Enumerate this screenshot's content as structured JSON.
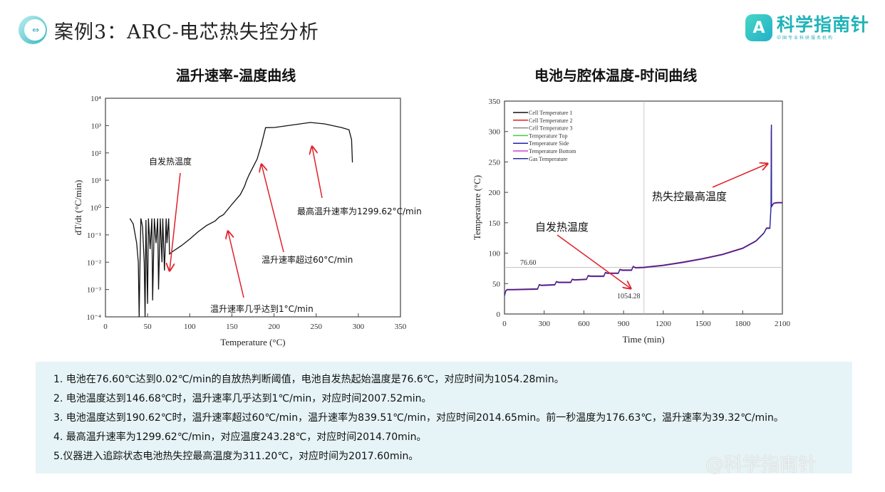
{
  "header": {
    "title": "案例3：ARC-电芯热失控分析",
    "logo_badge": "A",
    "logo_name": "科学指南针",
    "logo_sub": "中国专业科研服务机构"
  },
  "chart_data": [
    {
      "type": "line",
      "title": "温升速率-温度曲线",
      "xlabel": "Temperature (°C)",
      "ylabel": "dT/dt (°C/min)",
      "xlim": [
        0,
        350
      ],
      "ylim": [
        0.0001,
        10000
      ],
      "yscale": "log",
      "xticks": [
        "0",
        "50",
        "100",
        "150",
        "200",
        "250",
        "300",
        "350"
      ],
      "yticks": [
        "10⁻⁴",
        "10⁻³",
        "10⁻²",
        "10⁻¹",
        "10⁰",
        "10¹",
        "10²",
        "10³",
        "10⁴"
      ],
      "series": [
        {
          "name": "dT/dt",
          "color": "#111111",
          "x": [
            29,
            33,
            37,
            39,
            40,
            41,
            42,
            44,
            46,
            47,
            48,
            50,
            51,
            53,
            55,
            56,
            58,
            60,
            62,
            63,
            65,
            67,
            68,
            70,
            72,
            73,
            75,
            76,
            80,
            90,
            100,
            110,
            120,
            130,
            135,
            140,
            150,
            160,
            165,
            167,
            170,
            175,
            180,
            185,
            190,
            200,
            243,
            260,
            280,
            289,
            292,
            293
          ],
          "y": [
            0.4,
            0.25,
            0.05,
            0.01,
            0.0001,
            0.01,
            0.4,
            0.2,
            0.01,
            0.0001,
            0.35,
            0.0003,
            0.4,
            0.03,
            0.4,
            0.0004,
            0.4,
            0.05,
            0.4,
            0.001,
            0.4,
            0.01,
            0.4,
            0.005,
            0.4,
            0.05,
            0.4,
            0.02,
            0.025,
            0.04,
            0.07,
            0.13,
            0.22,
            0.32,
            0.45,
            0.55,
            1.3,
            3,
            6,
            9,
            15,
            30,
            60,
            200,
            840,
            850,
            1300,
            1150,
            850,
            700,
            300,
            45
          ]
        }
      ],
      "annotations": [
        {
          "text": "自发热温度"
        },
        {
          "text": "最高温升速率为1299.62°C/min"
        },
        {
          "text": "温升速率超过60°C/min"
        },
        {
          "text": "温升速率几乎达到1°C/min"
        }
      ]
    },
    {
      "type": "line",
      "title": "电池与腔体温度-时间曲线",
      "xlabel": "Time (min)",
      "ylabel": "Temperature (°C)",
      "xlim": [
        0,
        2100
      ],
      "ylim": [
        0,
        350
      ],
      "xticks": [
        "0",
        "300",
        "600",
        "900",
        "1200",
        "1500",
        "1800",
        "2100"
      ],
      "yticks": [
        "0",
        "50",
        "100",
        "150",
        "200",
        "250",
        "300",
        "350"
      ],
      "legend_position": "top-left",
      "legend": [
        {
          "name": "Cell Temperature 1",
          "color": "#111111"
        },
        {
          "name": "Cell Temperature 2",
          "color": "#e02020"
        },
        {
          "name": "Cell Temperature 3",
          "color": "#888888"
        },
        {
          "name": "Temperature Top",
          "color": "#40d040"
        },
        {
          "name": "Temperature Side",
          "color": "#2020b0"
        },
        {
          "name": "Temperature Bottom",
          "color": "#d040d0"
        },
        {
          "name": "Gas Temperature",
          "color": "#2a2a9a"
        }
      ],
      "series": [
        {
          "name": "Gas Temperature",
          "color": "#2a2a9a",
          "x": [
            0,
            10,
            20,
            60,
            250,
            262,
            280,
            380,
            392,
            410,
            500,
            512,
            530,
            620,
            632,
            650,
            750,
            762,
            780,
            860,
            872,
            890,
            960,
            972,
            990,
            1054,
            1200,
            1350,
            1500,
            1650,
            1800,
            1900,
            1960,
            1980,
            2005,
            2010,
            2014,
            2016,
            2017,
            2018,
            2022,
            2035,
            2060,
            2100
          ],
          "y": [
            30,
            38,
            40,
            40,
            41,
            48,
            47,
            48,
            53,
            52,
            52,
            57,
            56,
            57,
            63,
            62,
            62,
            68,
            67,
            67,
            73,
            72,
            72,
            78,
            76,
            76.6,
            80,
            85,
            91,
            98,
            108,
            120,
            133,
            141,
            141,
            160,
            176,
            300,
            311,
            176,
            178,
            182,
            183,
            183
          ]
        }
      ],
      "reference_line": {
        "y": 76.6,
        "y_label": "76.60",
        "x": 1054.28,
        "x_label": "1054.28"
      },
      "annotations": [
        {
          "text": "自发热温度"
        },
        {
          "text": "热失控最高温度"
        }
      ]
    }
  ],
  "summary": [
    "1. 电池在76.60℃达到0.02℃/min的自放热判断阈值，电池自发热起始温度是76.6℃，对应时间为1054.28min。",
    "2. 电池温度达到146.68℃时，温升速率几乎达到1℃/min，对应时间2007.52min。",
    "3. 电池温度达到190.62℃时，温升速率超过60℃/min，温升速率为839.51℃/min，对应时间2014.65min。前一秒温度为176.63℃，温升速率为39.32℃/min。",
    "4. 最高温升速率为1299.62℃/min，对应温度243.28℃，对应时间2014.70min。",
    "5.仪器进入追踪状态电池热失控最高温度为311.20℃，对应时间为2017.60min。"
  ],
  "watermark": "@科学指南针",
  "colors": {
    "accent": "#1fb3b8",
    "summary_bg": "#e6f4f7",
    "arrow": "#e0202a"
  }
}
